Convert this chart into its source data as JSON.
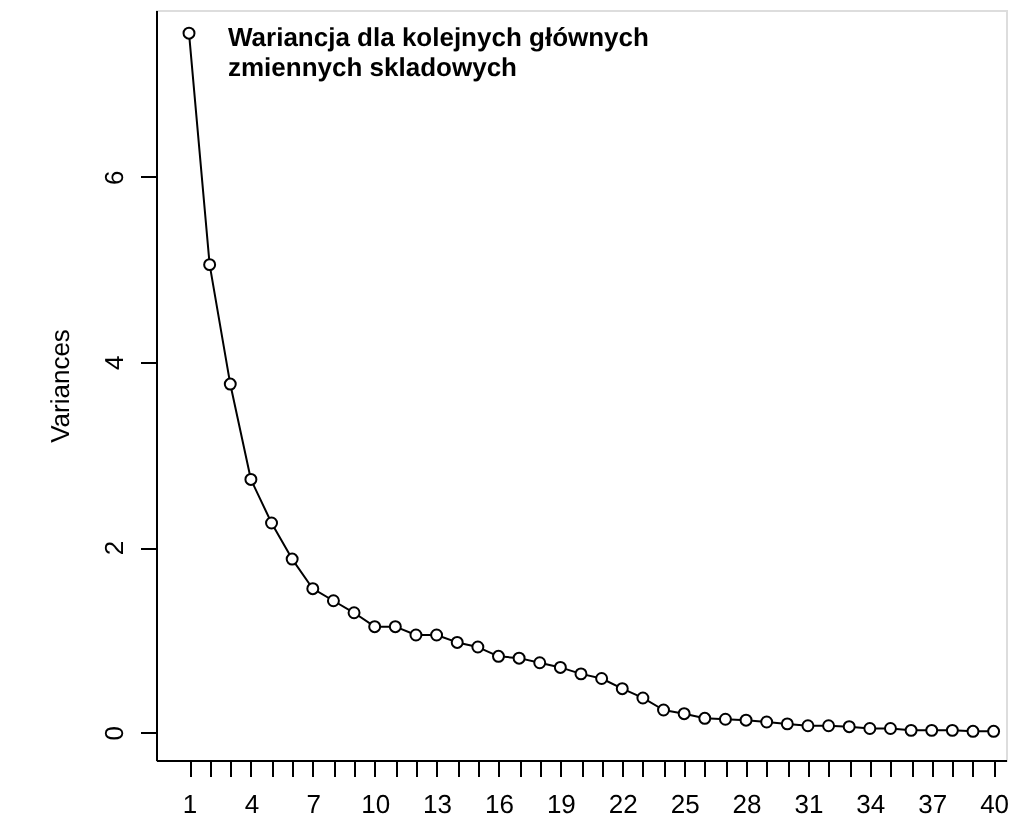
{
  "chart_data": {
    "type": "line",
    "title": "Wariancja dla kolejnych głównych\nzmiennych skladowych",
    "ylabel": "Variances",
    "x": [
      1,
      2,
      3,
      4,
      5,
      6,
      7,
      8,
      9,
      10,
      11,
      12,
      13,
      14,
      15,
      16,
      17,
      18,
      19,
      20,
      21,
      22,
      23,
      24,
      25,
      26,
      27,
      28,
      29,
      30,
      31,
      32,
      33,
      34,
      35,
      36,
      37,
      38,
      39,
      40
    ],
    "series": [
      {
        "color": "#000000",
        "values": [
          7.55,
          5.05,
          3.76,
          2.73,
          2.26,
          1.87,
          1.55,
          1.42,
          1.29,
          1.14,
          1.14,
          1.05,
          1.05,
          0.97,
          0.92,
          0.82,
          0.8,
          0.75,
          0.7,
          0.63,
          0.58,
          0.47,
          0.37,
          0.24,
          0.2,
          0.15,
          0.14,
          0.13,
          0.11,
          0.09,
          0.07,
          0.07,
          0.06,
          0.04,
          0.04,
          0.02,
          0.02,
          0.02,
          0.01,
          0.01
        ]
      }
    ],
    "xlim": [
      -0.6,
      40.6
    ],
    "ylim": [
      -0.3,
      7.8
    ],
    "xticks": [
      1,
      {
        "value": 2,
        "label": null
      },
      {
        "value": 3,
        "label": null
      },
      4,
      {
        "value": 5,
        "label": null
      },
      {
        "value": 6,
        "label": null
      },
      7,
      {
        "value": 8,
        "label": null
      },
      {
        "value": 9,
        "label": null
      },
      10,
      {
        "value": 11,
        "label": null
      },
      {
        "value": 12,
        "label": null
      },
      13,
      {
        "value": 14,
        "label": null
      },
      {
        "value": 15,
        "label": null
      },
      16,
      {
        "value": 17,
        "label": null
      },
      {
        "value": 18,
        "label": null
      },
      19,
      {
        "value": 20,
        "label": null
      },
      {
        "value": 21,
        "label": null
      },
      22,
      {
        "value": 23,
        "label": null
      },
      {
        "value": 24,
        "label": null
      },
      25,
      {
        "value": 26,
        "label": null
      },
      {
        "value": 27,
        "label": null
      },
      28,
      {
        "value": 29,
        "label": null
      },
      {
        "value": 30,
        "label": null
      },
      31,
      {
        "value": 32,
        "label": null
      },
      {
        "value": 33,
        "label": null
      },
      34,
      {
        "value": 35,
        "label": null
      },
      {
        "value": 36,
        "label": null
      },
      37,
      {
        "value": 38,
        "label": null
      },
      {
        "value": 39,
        "label": null
      },
      40
    ],
    "yticks": [
      0,
      2,
      4,
      6
    ],
    "marker": "circle",
    "line_style": "solid",
    "grid": false
  }
}
